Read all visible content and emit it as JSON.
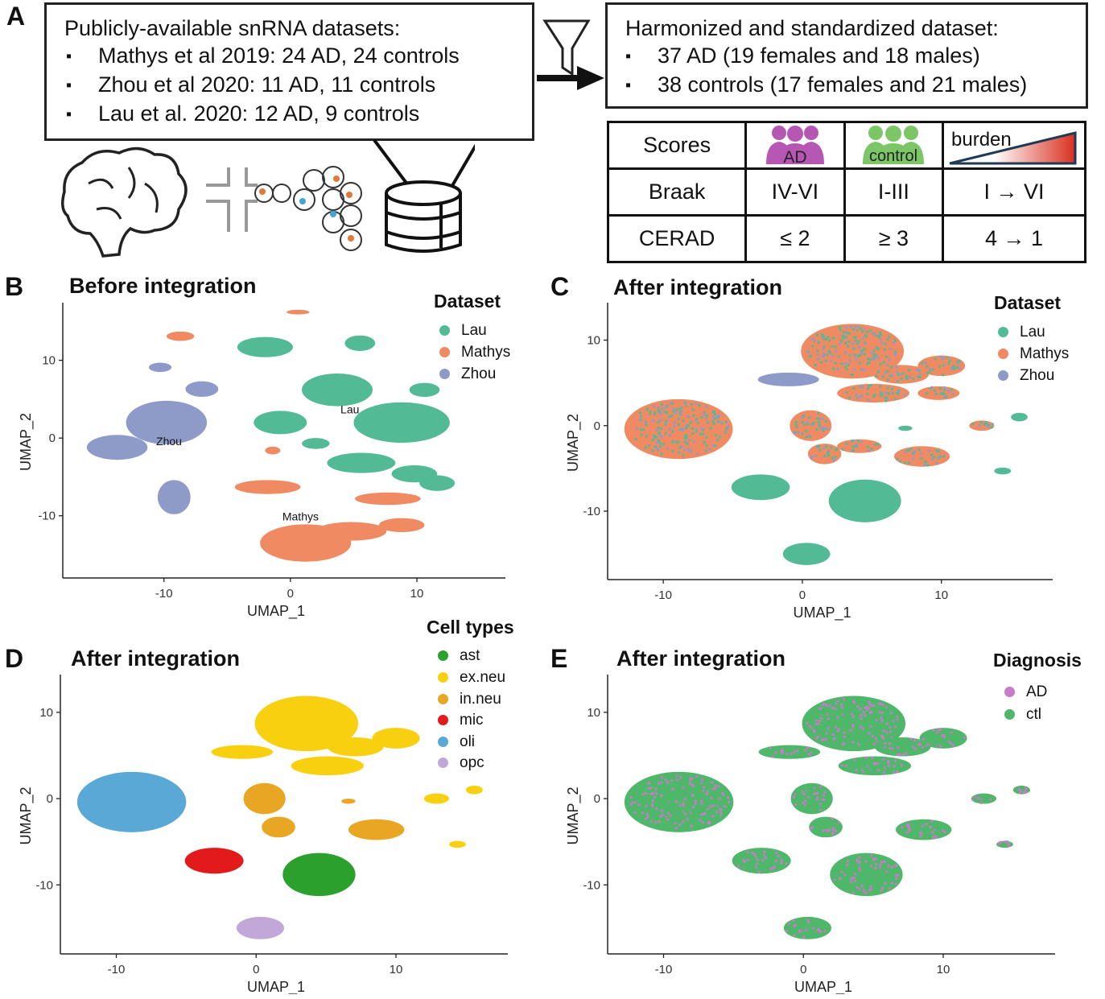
{
  "panel_a": {
    "letter": "A",
    "left_box": {
      "title": "Publicly-available snRNA datasets:",
      "items": [
        "Mathys et al 2019: 24 AD, 24 controls",
        "Zhou et al 2020: 11 AD, 11 controls",
        "Lau et al. 2020: 12 AD, 9 controls"
      ]
    },
    "right_box": {
      "title": "Harmonized and standardized dataset:",
      "items": [
        "37 AD (19 females and 18 males)",
        "38 controls (17 females and 21 males)"
      ]
    },
    "table": {
      "header": [
        "Scores",
        "AD",
        "control",
        "burden"
      ],
      "rows": [
        [
          "Braak",
          "IV-VI",
          "I-III",
          "I → VI"
        ],
        [
          "CERAD",
          "≤ 2",
          "≥ 3",
          "4 → 1"
        ]
      ]
    }
  },
  "colors": {
    "lau": "#52BA95",
    "mathys": "#EF8A62",
    "zhou": "#8E9BC9",
    "ast": "#2CA02C",
    "exneu": "#F9D00F",
    "inneu": "#E8A623",
    "mic": "#E31A1C",
    "oli": "#5AA8D6",
    "opc": "#C2A8D9",
    "ad": "#C97BC9",
    "ctl": "#4EB76A"
  },
  "chart_data": [
    {
      "panel": "B",
      "type": "scatter",
      "title": "Before integration",
      "xlabel": "UMAP_1",
      "ylabel": "UMAP_2",
      "xlim": [
        -18,
        17
      ],
      "ylim": [
        -18,
        17
      ],
      "xticks": [
        -10,
        0,
        10
      ],
      "yticks": [
        -10,
        0,
        10
      ],
      "legend_title": "Dataset",
      "legend": [
        "Lau",
        "Mathys",
        "Zhou"
      ],
      "annotations": [
        {
          "text": "Lau",
          "x": 4.7,
          "y": 3.2
        },
        {
          "text": "Zhou",
          "x": -9.6,
          "y": -0.9
        },
        {
          "text": "Mathys",
          "x": 0.8,
          "y": -10.6
        }
      ],
      "clusters": [
        {
          "series": "Lau",
          "x": 3.7,
          "y": 6.2,
          "rx": 2.8,
          "ry": 2.1
        },
        {
          "series": "Lau",
          "x": 8.8,
          "y": 2.0,
          "rx": 3.8,
          "ry": 2.6
        },
        {
          "series": "Lau",
          "x": -2.0,
          "y": 11.7,
          "rx": 2.2,
          "ry": 1.3
        },
        {
          "series": "Lau",
          "x": 5.5,
          "y": 12.2,
          "rx": 1.2,
          "ry": 1.0
        },
        {
          "series": "Lau",
          "x": -0.8,
          "y": 2.0,
          "rx": 2.1,
          "ry": 1.5
        },
        {
          "series": "Lau",
          "x": 5.6,
          "y": -3.2,
          "rx": 2.7,
          "ry": 1.3
        },
        {
          "series": "Lau",
          "x": 9.8,
          "y": -4.6,
          "rx": 1.8,
          "ry": 1.1
        },
        {
          "series": "Lau",
          "x": 11.6,
          "y": -5.8,
          "rx": 1.4,
          "ry": 1.0
        },
        {
          "series": "Lau",
          "x": 2.0,
          "y": -0.7,
          "rx": 1.1,
          "ry": 0.7
        },
        {
          "series": "Lau",
          "x": 10.6,
          "y": 6.2,
          "rx": 1.2,
          "ry": 0.9
        },
        {
          "series": "Mathys",
          "x": 1.2,
          "y": -13.5,
          "rx": 3.6,
          "ry": 2.4
        },
        {
          "series": "Mathys",
          "x": 4.8,
          "y": -12.0,
          "rx": 2.8,
          "ry": 1.2
        },
        {
          "series": "Mathys",
          "x": -1.8,
          "y": -6.3,
          "rx": 2.6,
          "ry": 0.9
        },
        {
          "series": "Mathys",
          "x": 8.8,
          "y": -11.2,
          "rx": 1.8,
          "ry": 0.9
        },
        {
          "series": "Mathys",
          "x": 7.7,
          "y": -7.8,
          "rx": 2.6,
          "ry": 0.8
        },
        {
          "series": "Mathys",
          "x": -8.7,
          "y": 13.1,
          "rx": 1.1,
          "ry": 0.6
        },
        {
          "series": "Mathys",
          "x": 0.6,
          "y": 16.2,
          "rx": 0.9,
          "ry": 0.3
        },
        {
          "series": "Mathys",
          "x": -1.4,
          "y": -1.6,
          "rx": 0.6,
          "ry": 0.5
        },
        {
          "series": "Zhou",
          "x": -9.8,
          "y": 2.0,
          "rx": 3.2,
          "ry": 2.8
        },
        {
          "series": "Zhou",
          "x": -13.7,
          "y": -1.2,
          "rx": 2.4,
          "ry": 1.6
        },
        {
          "series": "Zhou",
          "x": -9.2,
          "y": -7.6,
          "rx": 1.3,
          "ry": 2.2
        },
        {
          "series": "Zhou",
          "x": -10.3,
          "y": 9.1,
          "rx": 0.9,
          "ry": 0.6
        },
        {
          "series": "Zhou",
          "x": -7.0,
          "y": 6.3,
          "rx": 1.3,
          "ry": 1.0
        }
      ]
    },
    {
      "panel": "C",
      "type": "scatter",
      "title": "After integration",
      "xlabel": "UMAP_1",
      "ylabel": "UMAP_2",
      "xlim": [
        -14,
        18
      ],
      "ylim": [
        -18,
        14
      ],
      "xticks": [
        -10,
        0,
        10
      ],
      "yticks": [
        -10,
        0,
        10
      ],
      "legend_title": "Dataset",
      "legend": [
        "Lau",
        "Mathys",
        "Zhou"
      ],
      "clusters": [
        {
          "series": "Mixed",
          "x": -8.9,
          "y": -0.4,
          "rx": 3.9,
          "ry": 3.5
        },
        {
          "series": "Mixed",
          "x": 3.6,
          "y": 8.7,
          "rx": 3.7,
          "ry": 3.2
        },
        {
          "series": "Mixed",
          "x": 7.1,
          "y": 6.0,
          "rx": 2.0,
          "ry": 1.1
        },
        {
          "series": "Mixed",
          "x": 10.0,
          "y": 7.0,
          "rx": 1.7,
          "ry": 1.2
        },
        {
          "series": "Mixed",
          "x": 5.1,
          "y": 3.8,
          "rx": 2.6,
          "ry": 1.1
        },
        {
          "series": "Mixed",
          "x": 9.8,
          "y": 3.8,
          "rx": 1.5,
          "ry": 0.8
        },
        {
          "series": "Zhou",
          "x": -1.0,
          "y": 5.4,
          "rx": 2.2,
          "ry": 0.8
        },
        {
          "series": "Mixed",
          "x": 0.6,
          "y": 0.0,
          "rx": 1.5,
          "ry": 1.8
        },
        {
          "series": "Mixed",
          "x": 1.6,
          "y": -3.3,
          "rx": 1.2,
          "ry": 1.2
        },
        {
          "series": "Mixed",
          "x": 8.6,
          "y": -3.6,
          "rx": 2.0,
          "ry": 1.2
        },
        {
          "series": "Mixed",
          "x": 4.1,
          "y": -2.4,
          "rx": 1.6,
          "ry": 0.8
        },
        {
          "series": "Mixed",
          "x": 12.9,
          "y": 0.0,
          "rx": 0.9,
          "ry": 0.6
        },
        {
          "series": "Lau",
          "x": 4.5,
          "y": -8.8,
          "rx": 2.6,
          "ry": 2.5
        },
        {
          "series": "Lau",
          "x": -3.0,
          "y": -7.2,
          "rx": 2.1,
          "ry": 1.5
        },
        {
          "series": "Lau",
          "x": 0.3,
          "y": -15.0,
          "rx": 1.7,
          "ry": 1.3
        },
        {
          "series": "Lau",
          "x": 15.6,
          "y": 1.0,
          "rx": 0.6,
          "ry": 0.5
        },
        {
          "series": "Lau",
          "x": 14.4,
          "y": -5.3,
          "rx": 0.6,
          "ry": 0.4
        },
        {
          "series": "Lau",
          "x": 7.4,
          "y": -0.3,
          "rx": 0.5,
          "ry": 0.3
        }
      ]
    },
    {
      "panel": "D",
      "type": "scatter",
      "title": "After integration",
      "xlabel": "UMAP_1",
      "ylabel": "UMAP_2",
      "xlim": [
        -14,
        18
      ],
      "ylim": [
        -18,
        14
      ],
      "xticks": [
        -10,
        0,
        10
      ],
      "yticks": [
        -10,
        0,
        10
      ],
      "legend_title": "Cell types",
      "legend": [
        "ast",
        "ex.neu",
        "in.neu",
        "mic",
        "oli",
        "opc"
      ],
      "clusters": [
        {
          "series": "oli",
          "x": -8.9,
          "y": -0.4,
          "rx": 3.9,
          "ry": 3.5
        },
        {
          "series": "ex.neu",
          "x": 3.6,
          "y": 8.7,
          "rx": 3.7,
          "ry": 3.2
        },
        {
          "series": "ex.neu",
          "x": 7.1,
          "y": 6.0,
          "rx": 2.0,
          "ry": 1.1
        },
        {
          "series": "ex.neu",
          "x": 10.0,
          "y": 7.0,
          "rx": 1.7,
          "ry": 1.2
        },
        {
          "series": "ex.neu",
          "x": 5.1,
          "y": 3.8,
          "rx": 2.6,
          "ry": 1.1
        },
        {
          "series": "ex.neu",
          "x": -1.0,
          "y": 5.4,
          "rx": 2.2,
          "ry": 0.8
        },
        {
          "series": "ex.neu",
          "x": 12.9,
          "y": 0.0,
          "rx": 0.9,
          "ry": 0.6
        },
        {
          "series": "ex.neu",
          "x": 15.6,
          "y": 1.0,
          "rx": 0.6,
          "ry": 0.5
        },
        {
          "series": "ex.neu",
          "x": 14.4,
          "y": -5.3,
          "rx": 0.6,
          "ry": 0.4
        },
        {
          "series": "in.neu",
          "x": 0.6,
          "y": 0.0,
          "rx": 1.5,
          "ry": 1.8
        },
        {
          "series": "in.neu",
          "x": 1.6,
          "y": -3.3,
          "rx": 1.2,
          "ry": 1.2
        },
        {
          "series": "in.neu",
          "x": 8.6,
          "y": -3.6,
          "rx": 2.0,
          "ry": 1.2
        },
        {
          "series": "in.neu",
          "x": 6.6,
          "y": -0.3,
          "rx": 0.5,
          "ry": 0.3
        },
        {
          "series": "ast",
          "x": 4.5,
          "y": -8.8,
          "rx": 2.6,
          "ry": 2.5
        },
        {
          "series": "mic",
          "x": -3.0,
          "y": -7.2,
          "rx": 2.1,
          "ry": 1.5
        },
        {
          "series": "opc",
          "x": 0.3,
          "y": -15.0,
          "rx": 1.7,
          "ry": 1.3
        }
      ]
    },
    {
      "panel": "E",
      "type": "scatter",
      "title": "After integration",
      "xlabel": "UMAP_1",
      "ylabel": "UMAP_2",
      "xlim": [
        -14,
        18
      ],
      "ylim": [
        -18,
        14
      ],
      "xticks": [
        -10,
        0,
        10
      ],
      "yticks": [
        -10,
        0,
        10
      ],
      "legend_title": "Diagnosis",
      "legend": [
        "AD",
        "ctl"
      ],
      "clusters": [
        {
          "series": "Mixed",
          "x": -8.9,
          "y": -0.4,
          "rx": 3.9,
          "ry": 3.5
        },
        {
          "series": "Mixed",
          "x": 3.6,
          "y": 8.7,
          "rx": 3.7,
          "ry": 3.2
        },
        {
          "series": "Mixed",
          "x": 7.1,
          "y": 6.0,
          "rx": 2.0,
          "ry": 1.1
        },
        {
          "series": "Mixed",
          "x": 10.0,
          "y": 7.0,
          "rx": 1.7,
          "ry": 1.2
        },
        {
          "series": "Mixed",
          "x": 5.1,
          "y": 3.8,
          "rx": 2.6,
          "ry": 1.1
        },
        {
          "series": "Mixed",
          "x": -1.0,
          "y": 5.4,
          "rx": 2.2,
          "ry": 0.8
        },
        {
          "series": "Mixed",
          "x": 0.6,
          "y": 0.0,
          "rx": 1.5,
          "ry": 1.8
        },
        {
          "series": "Mixed",
          "x": 1.6,
          "y": -3.3,
          "rx": 1.2,
          "ry": 1.2
        },
        {
          "series": "Mixed",
          "x": 8.6,
          "y": -3.6,
          "rx": 2.0,
          "ry": 1.2
        },
        {
          "series": "Mixed",
          "x": 12.9,
          "y": 0.0,
          "rx": 0.9,
          "ry": 0.6
        },
        {
          "series": "Mixed",
          "x": 4.5,
          "y": -8.8,
          "rx": 2.6,
          "ry": 2.5
        },
        {
          "series": "Mixed",
          "x": -3.0,
          "y": -7.2,
          "rx": 2.1,
          "ry": 1.5
        },
        {
          "series": "Mixed",
          "x": 0.3,
          "y": -15.0,
          "rx": 1.7,
          "ry": 1.3
        },
        {
          "series": "Mixed",
          "x": 15.6,
          "y": 1.0,
          "rx": 0.6,
          "ry": 0.5
        },
        {
          "series": "Mixed",
          "x": 14.4,
          "y": -5.3,
          "rx": 0.6,
          "ry": 0.4
        }
      ]
    }
  ]
}
